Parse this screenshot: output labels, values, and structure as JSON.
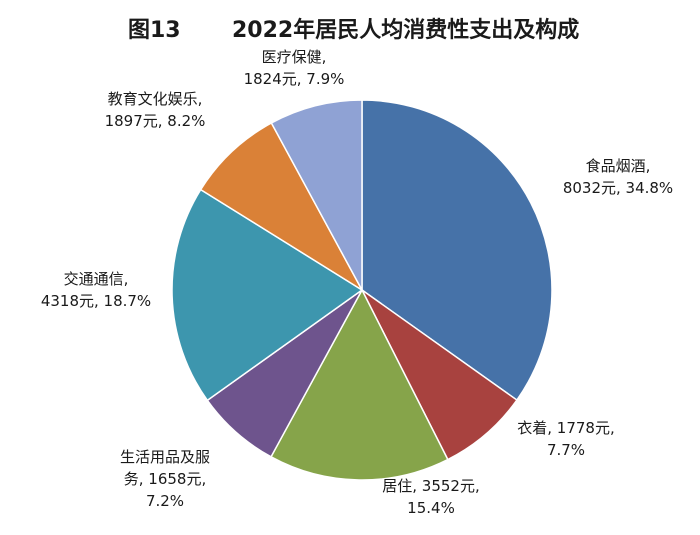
{
  "figure": {
    "number": "图13",
    "title": "2022年居民人均消费性支出及构成"
  },
  "chart_data": {
    "type": "pie",
    "title": "2022年居民人均消费性支出及构成",
    "slices": [
      {
        "category": "食品烟酒",
        "value": 8032,
        "percent": 34.8,
        "color": "#4672a8",
        "label_lines": [
          "食品烟酒,",
          "8032元, 34.8%"
        ]
      },
      {
        "category": "衣着",
        "value": 1778,
        "percent": 7.7,
        "color": "#a8423f",
        "label_lines": [
          "衣着, 1778元,",
          "7.7%"
        ]
      },
      {
        "category": "居住",
        "value": 3552,
        "percent": 15.4,
        "color": "#86a44a",
        "label_lines": [
          "居住, 3552元,",
          "15.4%"
        ]
      },
      {
        "category": "生活用品及服务",
        "value": 1658,
        "percent": 7.2,
        "color": "#6e548d",
        "label_lines": [
          "生活用品及服",
          "务, 1658元,",
          "7.2%"
        ]
      },
      {
        "category": "交通通信",
        "value": 4318,
        "percent": 18.7,
        "color": "#3d96ae",
        "label_lines": [
          "交通通信,",
          "4318元, 18.7%"
        ]
      },
      {
        "category": "教育文化娱乐",
        "value": 1897,
        "percent": 8.2,
        "color": "#da8137",
        "label_lines": [
          "教育文化娱乐,",
          "1897元, 8.2%"
        ]
      },
      {
        "category": "医疗保健",
        "value": 1824,
        "percent": 7.9,
        "color": "#8fa2d4",
        "label_lines": [
          "医疗保健,",
          "1824元, 7.9%"
        ]
      }
    ]
  }
}
